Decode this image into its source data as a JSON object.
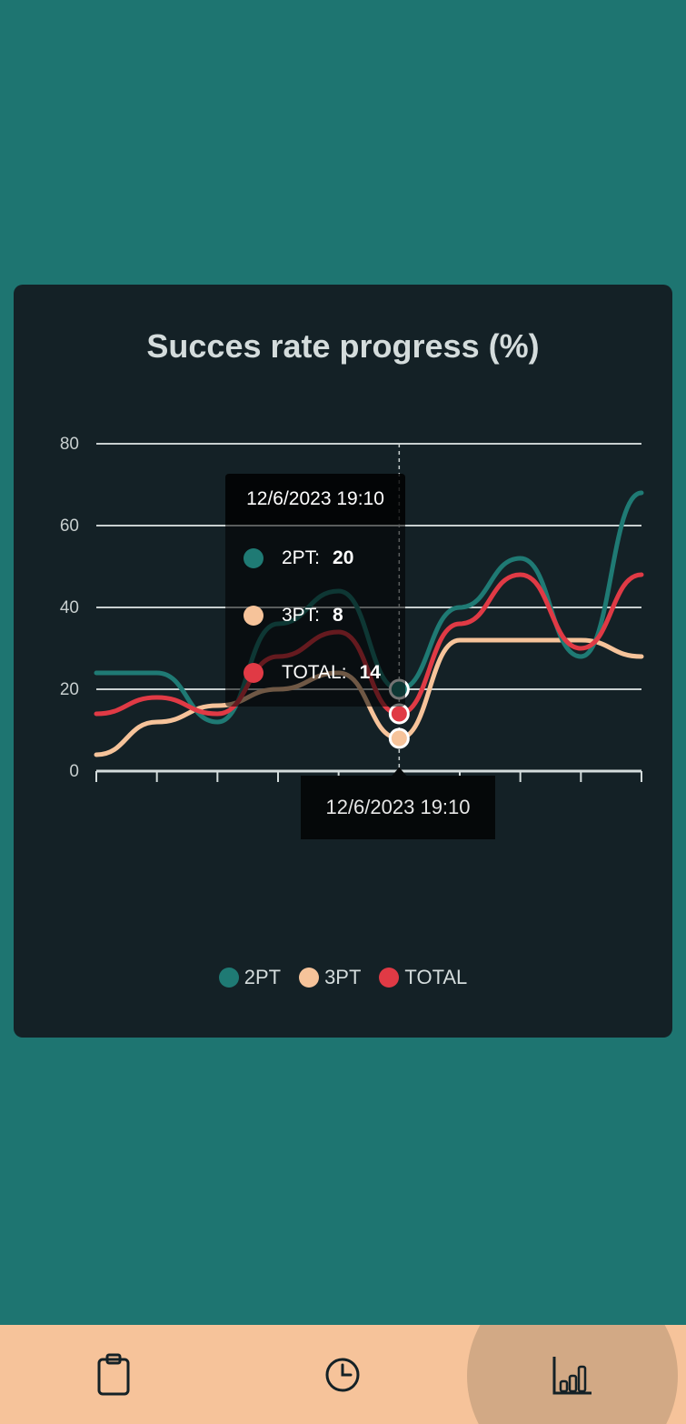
{
  "colors": {
    "2PT": "#1f7a74",
    "3PT": "#f6c39a",
    "TOTAL": "#e03a45",
    "background": "#1e7571",
    "card": "#142126"
  },
  "chart_data": {
    "type": "line",
    "title": "Succes rate progress (%)",
    "ylim": [
      0,
      80
    ],
    "yticks": [
      0,
      20,
      40,
      60,
      80
    ],
    "x_count": 10,
    "series": [
      {
        "name": "2PT",
        "values": [
          24,
          24,
          12,
          36,
          44,
          20,
          40,
          52,
          28,
          68
        ]
      },
      {
        "name": "3PT",
        "values": [
          4,
          12,
          16,
          20,
          24,
          8,
          32,
          32,
          32,
          28
        ]
      },
      {
        "name": "TOTAL",
        "values": [
          14,
          18,
          14,
          28,
          34,
          14,
          36,
          48,
          30,
          48
        ]
      }
    ],
    "grid": true,
    "legend": "bottom"
  },
  "tooltip": {
    "title": "12/6/2023 19:10",
    "rows": [
      {
        "label": "2PT:",
        "value": "20"
      },
      {
        "label": "3PT:",
        "value": "8"
      },
      {
        "label": "TOTAL:",
        "value": "14"
      }
    ]
  },
  "axis_tooltip": "12/6/2023 19:10",
  "legend": [
    {
      "label": "2PT"
    },
    {
      "label": "3PT"
    },
    {
      "label": "TOTAL"
    }
  ],
  "nav": [
    {
      "icon": "clipboard-icon"
    },
    {
      "icon": "clock-icon"
    },
    {
      "icon": "bar-chart-icon",
      "active": true
    }
  ]
}
